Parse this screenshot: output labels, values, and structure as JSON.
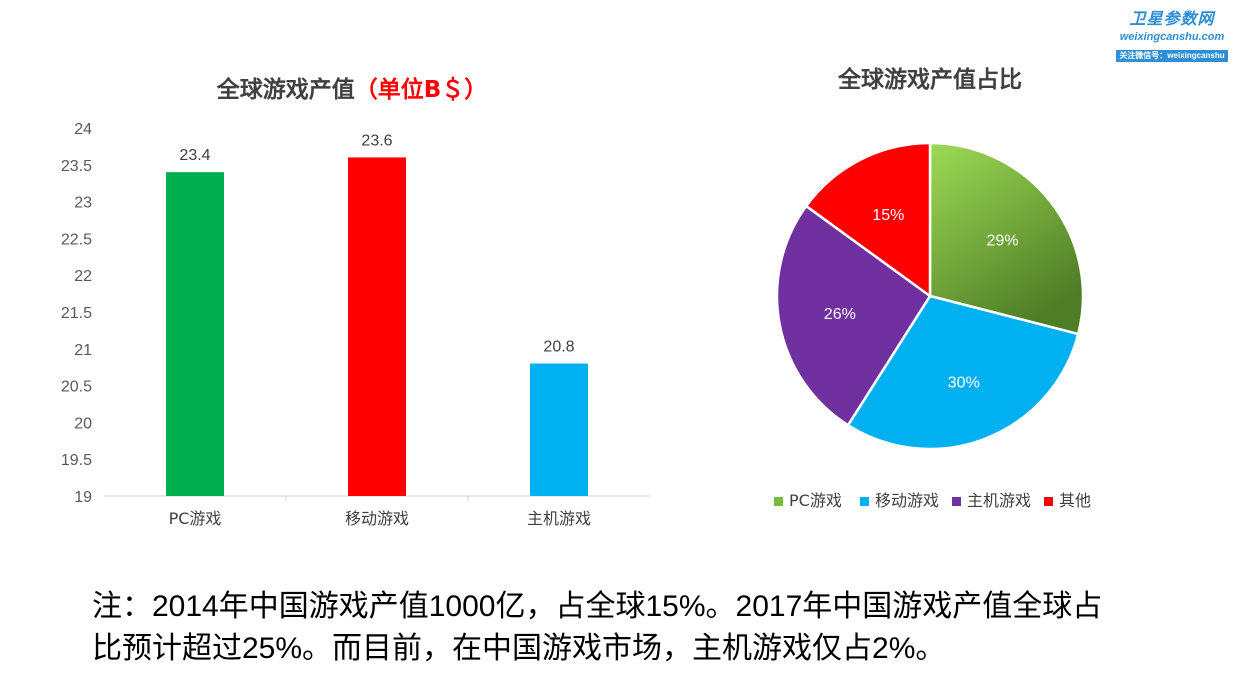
{
  "watermark": {
    "title": "卫星参数网",
    "domain": "weixingcanshu.com",
    "follow": "关注微信号：weixingcanshu"
  },
  "chart_data": [
    {
      "type": "bar",
      "title": "全球游戏产值",
      "title_unit": "（单位B＄）",
      "categories": [
        "PC游戏",
        "移动游戏",
        "主机游戏"
      ],
      "values": [
        23.4,
        23.6,
        20.8
      ],
      "colors": [
        "#00b050",
        "#ff0000",
        "#00b0f0"
      ],
      "ylim": [
        19,
        24
      ],
      "yticks": [
        "19",
        "19.5",
        "20",
        "20.5",
        "21",
        "21.5",
        "22",
        "22.5",
        "23",
        "23.5",
        "24"
      ],
      "data_labels": [
        "23.4",
        "23.6",
        "20.8"
      ],
      "grid": false
    },
    {
      "type": "pie",
      "title": "全球游戏产值占比",
      "categories": [
        "PC游戏",
        "移动游戏",
        "主机游戏",
        "其他"
      ],
      "values": [
        29,
        30,
        26,
        15
      ],
      "labels": [
        "29%",
        "30%",
        "26%",
        "15%"
      ],
      "colors": [
        "#7aba3c",
        "#00b0f0",
        "#7030a0",
        "#ff0000"
      ],
      "legend": "bottom"
    }
  ],
  "note": {
    "line1": "注：2014年中国游戏产值1000亿，占全球15%。2017年中国游戏产值全球占",
    "line2": "比预计超过25%。而目前，在中国游戏市场，主机游戏仅占2%。"
  }
}
